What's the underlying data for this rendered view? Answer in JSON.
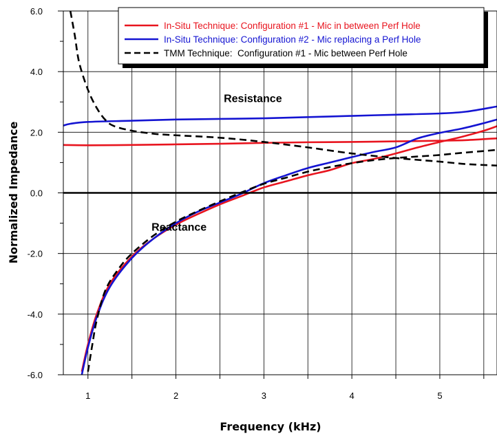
{
  "chart_data": {
    "type": "line",
    "title": "",
    "xlabel": "Frequency (kHz)",
    "ylabel": "Normalized Impedance",
    "xlim": [
      0.72,
      5.65
    ],
    "ylim": [
      -6.0,
      6.0
    ],
    "xticks": [
      1,
      2,
      3,
      4,
      5
    ],
    "xtick_labels": [
      "1",
      "2",
      "3",
      "4",
      "5"
    ],
    "yticks": [
      -6.0,
      -4.0,
      -2.0,
      0.0,
      2.0,
      4.0,
      6.0
    ],
    "ytick_labels": [
      "-6.0",
      "-4.0",
      "-2.0",
      "0.0",
      "2.0",
      "4.0",
      "6.0"
    ],
    "grid": true,
    "legend_position": "top-right",
    "annotations": [
      {
        "text": "Resistance",
        "x": 3.0,
        "y": 3.0
      },
      {
        "text": "Reactance",
        "x": 2.85,
        "y": -1.25
      }
    ],
    "series": [
      {
        "name": "In-Situ Technique: Configuration #1 - Mic in between Perf Hole",
        "color": "#e8141e",
        "style": "solid",
        "curves": [
          {
            "component": "resistance",
            "x": [
              0.72,
              1.0,
              1.5,
              2.0,
              2.5,
              3.0,
              3.5,
              4.0,
              4.5,
              5.0,
              5.3,
              5.65
            ],
            "y": [
              1.58,
              1.57,
              1.58,
              1.6,
              1.62,
              1.65,
              1.67,
              1.68,
              1.7,
              1.72,
              1.74,
              1.8
            ]
          },
          {
            "component": "reactance",
            "x": [
              0.93,
              1.0,
              1.1,
              1.25,
              1.5,
              1.75,
              2.0,
              2.25,
              2.5,
              2.75,
              3.0,
              3.25,
              3.5,
              3.75,
              4.0,
              4.25,
              4.5,
              4.75,
              5.0,
              5.25,
              5.5,
              5.65
            ],
            "y": [
              -5.9,
              -5.0,
              -4.0,
              -3.0,
              -2.1,
              -1.5,
              -1.05,
              -0.7,
              -0.38,
              -0.1,
              0.18,
              0.38,
              0.58,
              0.75,
              0.98,
              1.12,
              1.3,
              1.5,
              1.68,
              1.85,
              2.05,
              2.2
            ]
          }
        ]
      },
      {
        "name": "In-Situ Technique: Configuration #2 - Mic replacing a Perf Hole",
        "color": "#1414d2",
        "style": "solid",
        "curves": [
          {
            "component": "resistance",
            "x": [
              0.72,
              0.8,
              1.0,
              1.5,
              2.0,
              2.5,
              3.0,
              3.5,
              4.0,
              4.5,
              5.0,
              5.3,
              5.65
            ],
            "y": [
              2.22,
              2.28,
              2.34,
              2.38,
              2.42,
              2.44,
              2.46,
              2.5,
              2.54,
              2.58,
              2.62,
              2.68,
              2.85
            ]
          },
          {
            "component": "reactance",
            "x": [
              0.93,
              1.0,
              1.1,
              1.25,
              1.5,
              1.75,
              2.0,
              2.25,
              2.5,
              2.75,
              3.0,
              3.25,
              3.5,
              3.75,
              4.0,
              4.25,
              4.5,
              4.75,
              5.0,
              5.25,
              5.5,
              5.65
            ],
            "y": [
              -6.0,
              -5.1,
              -4.1,
              -3.1,
              -2.15,
              -1.5,
              -1.0,
              -0.62,
              -0.32,
              -0.02,
              0.32,
              0.58,
              0.82,
              1.0,
              1.18,
              1.35,
              1.5,
              1.8,
              1.98,
              2.12,
              2.3,
              2.42
            ]
          }
        ]
      },
      {
        "name": "TMM Technique:  Configuration #1 - Mic between Perf Hole",
        "color": "#000000",
        "style": "dashed",
        "curves": [
          {
            "component": "resistance",
            "x": [
              0.8,
              0.85,
              0.9,
              1.0,
              1.1,
              1.2,
              1.3,
              1.5,
              1.75,
              2.0,
              2.5,
              3.0,
              3.5,
              4.0,
              4.5,
              5.0,
              5.3,
              5.65
            ],
            "y": [
              6.0,
              5.2,
              4.3,
              3.4,
              2.8,
              2.4,
              2.2,
              2.05,
              1.95,
              1.9,
              1.82,
              1.68,
              1.5,
              1.3,
              1.15,
              1.03,
              0.95,
              0.9
            ]
          },
          {
            "component": "reactance",
            "x": [
              1.0,
              1.05,
              1.1,
              1.2,
              1.35,
              1.5,
              1.75,
              2.0,
              2.25,
              2.5,
              2.75,
              3.0,
              3.25,
              3.5,
              3.75,
              4.0,
              4.25,
              4.5,
              4.75,
              5.0,
              5.25,
              5.5,
              5.65
            ],
            "y": [
              -5.9,
              -5.0,
              -4.2,
              -3.2,
              -2.5,
              -2.0,
              -1.4,
              -0.95,
              -0.6,
              -0.28,
              0.02,
              0.3,
              0.5,
              0.7,
              0.85,
              0.98,
              1.08,
              1.15,
              1.2,
              1.25,
              1.32,
              1.38,
              1.42
            ]
          }
        ]
      }
    ]
  }
}
